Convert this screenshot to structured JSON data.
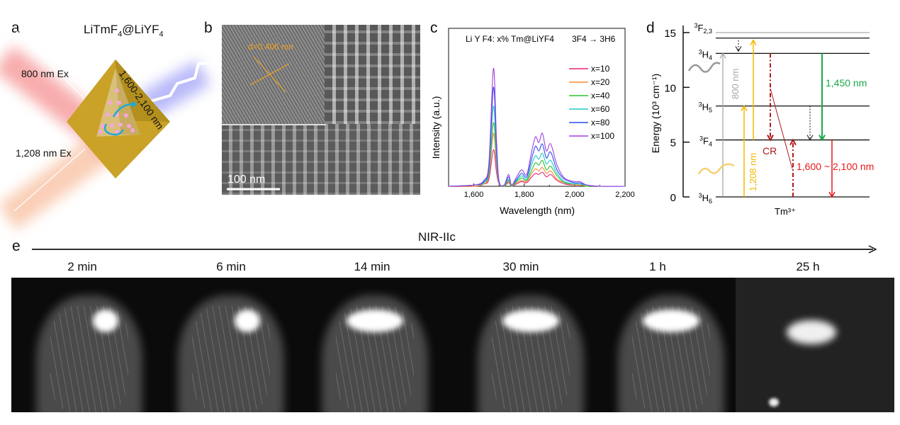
{
  "panel_labels": {
    "a": "a",
    "b": "b",
    "c": "c",
    "d": "d",
    "e": "e"
  },
  "panel_a": {
    "title_main": "LiTmF",
    "title_sub": "4",
    "title_mid": "@LiYF",
    "title_sub2": "4",
    "ex1": "800 nm Ex",
    "ex2": "1,208 nm Ex",
    "emission": "1,600-2,100 nm",
    "colors": {
      "crystal": "#c9a227",
      "beam_800": "#f26a6a",
      "beam_1208": "#f5a070",
      "emission": "#8a8cf5",
      "ion": "#f5a6e0",
      "arrow": "#1fa9d6"
    }
  },
  "panel_b": {
    "lattice_label": "d=0.406 nm",
    "scale_bar": "100 nm",
    "colors": {
      "lattice_label": "#f0a020"
    }
  },
  "chart_data": {
    "type": "line",
    "title_left": "Li Y F4: x% Tm@LiYF4",
    "title_right": "3F4 → 3H6",
    "xlabel": "Wavelength (nm)",
    "ylabel": "Intensity (a.u.)",
    "xlim": [
      1500,
      2200
    ],
    "ylim": [
      0,
      1.34
    ],
    "xticks": [
      1600,
      1800,
      2000,
      2200
    ],
    "xtick_labels": [
      "1,600",
      "1,800",
      "2,000",
      "2,200"
    ],
    "legend_position": "right",
    "x": [
      1500,
      1600,
      1640,
      1660,
      1678,
      1690,
      1700,
      1720,
      1738,
      1750,
      1770,
      1790,
      1810,
      1830,
      1845,
      1858,
      1872,
      1888,
      1905,
      1930,
      1960,
      2000,
      2020,
      2050,
      2100,
      2200
    ],
    "series": [
      {
        "name": "x=10",
        "color": "#e8247c",
        "values": [
          0,
          0,
          0.02,
          0.06,
          0.31,
          0.12,
          0.02,
          0,
          0.03,
          0,
          0.02,
          0.04,
          0.03,
          0.08,
          0.11,
          0.1,
          0.12,
          0.08,
          0.1,
          0.05,
          0.02,
          0.01,
          0.01,
          0,
          0,
          0
        ]
      },
      {
        "name": "x=20",
        "color": "#f58a3a",
        "values": [
          0,
          0,
          0.02,
          0.09,
          0.45,
          0.18,
          0.02,
          0,
          0.04,
          0,
          0.03,
          0.05,
          0.04,
          0.11,
          0.15,
          0.13,
          0.16,
          0.11,
          0.13,
          0.06,
          0.03,
          0.01,
          0.01,
          0,
          0,
          0
        ]
      },
      {
        "name": "x=40",
        "color": "#2ec32e",
        "values": [
          0,
          0.01,
          0.03,
          0.11,
          0.54,
          0.22,
          0.03,
          0,
          0.05,
          0,
          0.04,
          0.07,
          0.05,
          0.14,
          0.2,
          0.18,
          0.22,
          0.14,
          0.17,
          0.09,
          0.03,
          0.02,
          0.02,
          0,
          0,
          0
        ]
      },
      {
        "name": "x=60",
        "color": "#20c8c8",
        "values": [
          0,
          0.01,
          0.03,
          0.14,
          0.68,
          0.27,
          0.03,
          0.01,
          0.06,
          0.01,
          0.05,
          0.09,
          0.06,
          0.19,
          0.26,
          0.23,
          0.28,
          0.19,
          0.22,
          0.11,
          0.04,
          0.02,
          0.02,
          0.01,
          0,
          0
        ]
      },
      {
        "name": "x=80",
        "color": "#2a4cf0",
        "values": [
          0,
          0.01,
          0.04,
          0.17,
          0.84,
          0.34,
          0.04,
          0.01,
          0.08,
          0.01,
          0.06,
          0.11,
          0.08,
          0.24,
          0.34,
          0.3,
          0.36,
          0.24,
          0.29,
          0.14,
          0.06,
          0.03,
          0.03,
          0.01,
          0,
          0
        ]
      },
      {
        "name": "x=100",
        "color": "#a040e0",
        "values": [
          0,
          0.01,
          0.05,
          0.2,
          1.0,
          0.4,
          0.05,
          0.01,
          0.1,
          0.01,
          0.08,
          0.14,
          0.1,
          0.3,
          0.42,
          0.37,
          0.45,
          0.3,
          0.36,
          0.18,
          0.07,
          0.04,
          0.04,
          0.01,
          0,
          0
        ]
      }
    ]
  },
  "panel_d": {
    "ylabel": "Energy (10³ cm⁻¹)",
    "ylim": [
      0,
      15
    ],
    "yticks": [
      0,
      5,
      10,
      15
    ],
    "ytick_labels": [
      "0",
      "5",
      "10",
      "15"
    ],
    "ion_label": "Tm³⁺",
    "levels": [
      {
        "sup": "3",
        "sym": "F",
        "sub": "2,3",
        "energy": 15.0,
        "color": "#aaaaaa"
      },
      {
        "sup": "",
        "sym": "",
        "sub": "",
        "energy": 14.5,
        "color": "#111111"
      },
      {
        "sup": "3",
        "sym": "H",
        "sub": "4",
        "energy": 13.1,
        "color": "#111111"
      },
      {
        "sup": "3",
        "sym": "H",
        "sub": "5",
        "energy": 8.3,
        "color": "#111111"
      },
      {
        "sup": "3",
        "sym": "F",
        "sub": "4",
        "energy": 5.2,
        "color": "#111111"
      },
      {
        "sup": "3",
        "sym": "H",
        "sub": "6",
        "energy": 0,
        "color": "#111111"
      }
    ],
    "labels": {
      "ex800": "800 nm",
      "ex1208": "1,208 nm",
      "em1450": "1,450 nm",
      "cr": "CR",
      "em_range": "1,600 ~ 2,100 nm"
    },
    "colors": {
      "ex800": "#a8a8a8",
      "ex1208": "#f5b800",
      "em1450": "#1aa84a",
      "cr": "#b01818",
      "em_range": "#e81818"
    }
  },
  "panel_e": {
    "axis_label": "NIR-IIc",
    "timepoints": [
      "2 min",
      "6 min",
      "14 min",
      "30 min",
      "1 h",
      "25 h"
    ]
  }
}
